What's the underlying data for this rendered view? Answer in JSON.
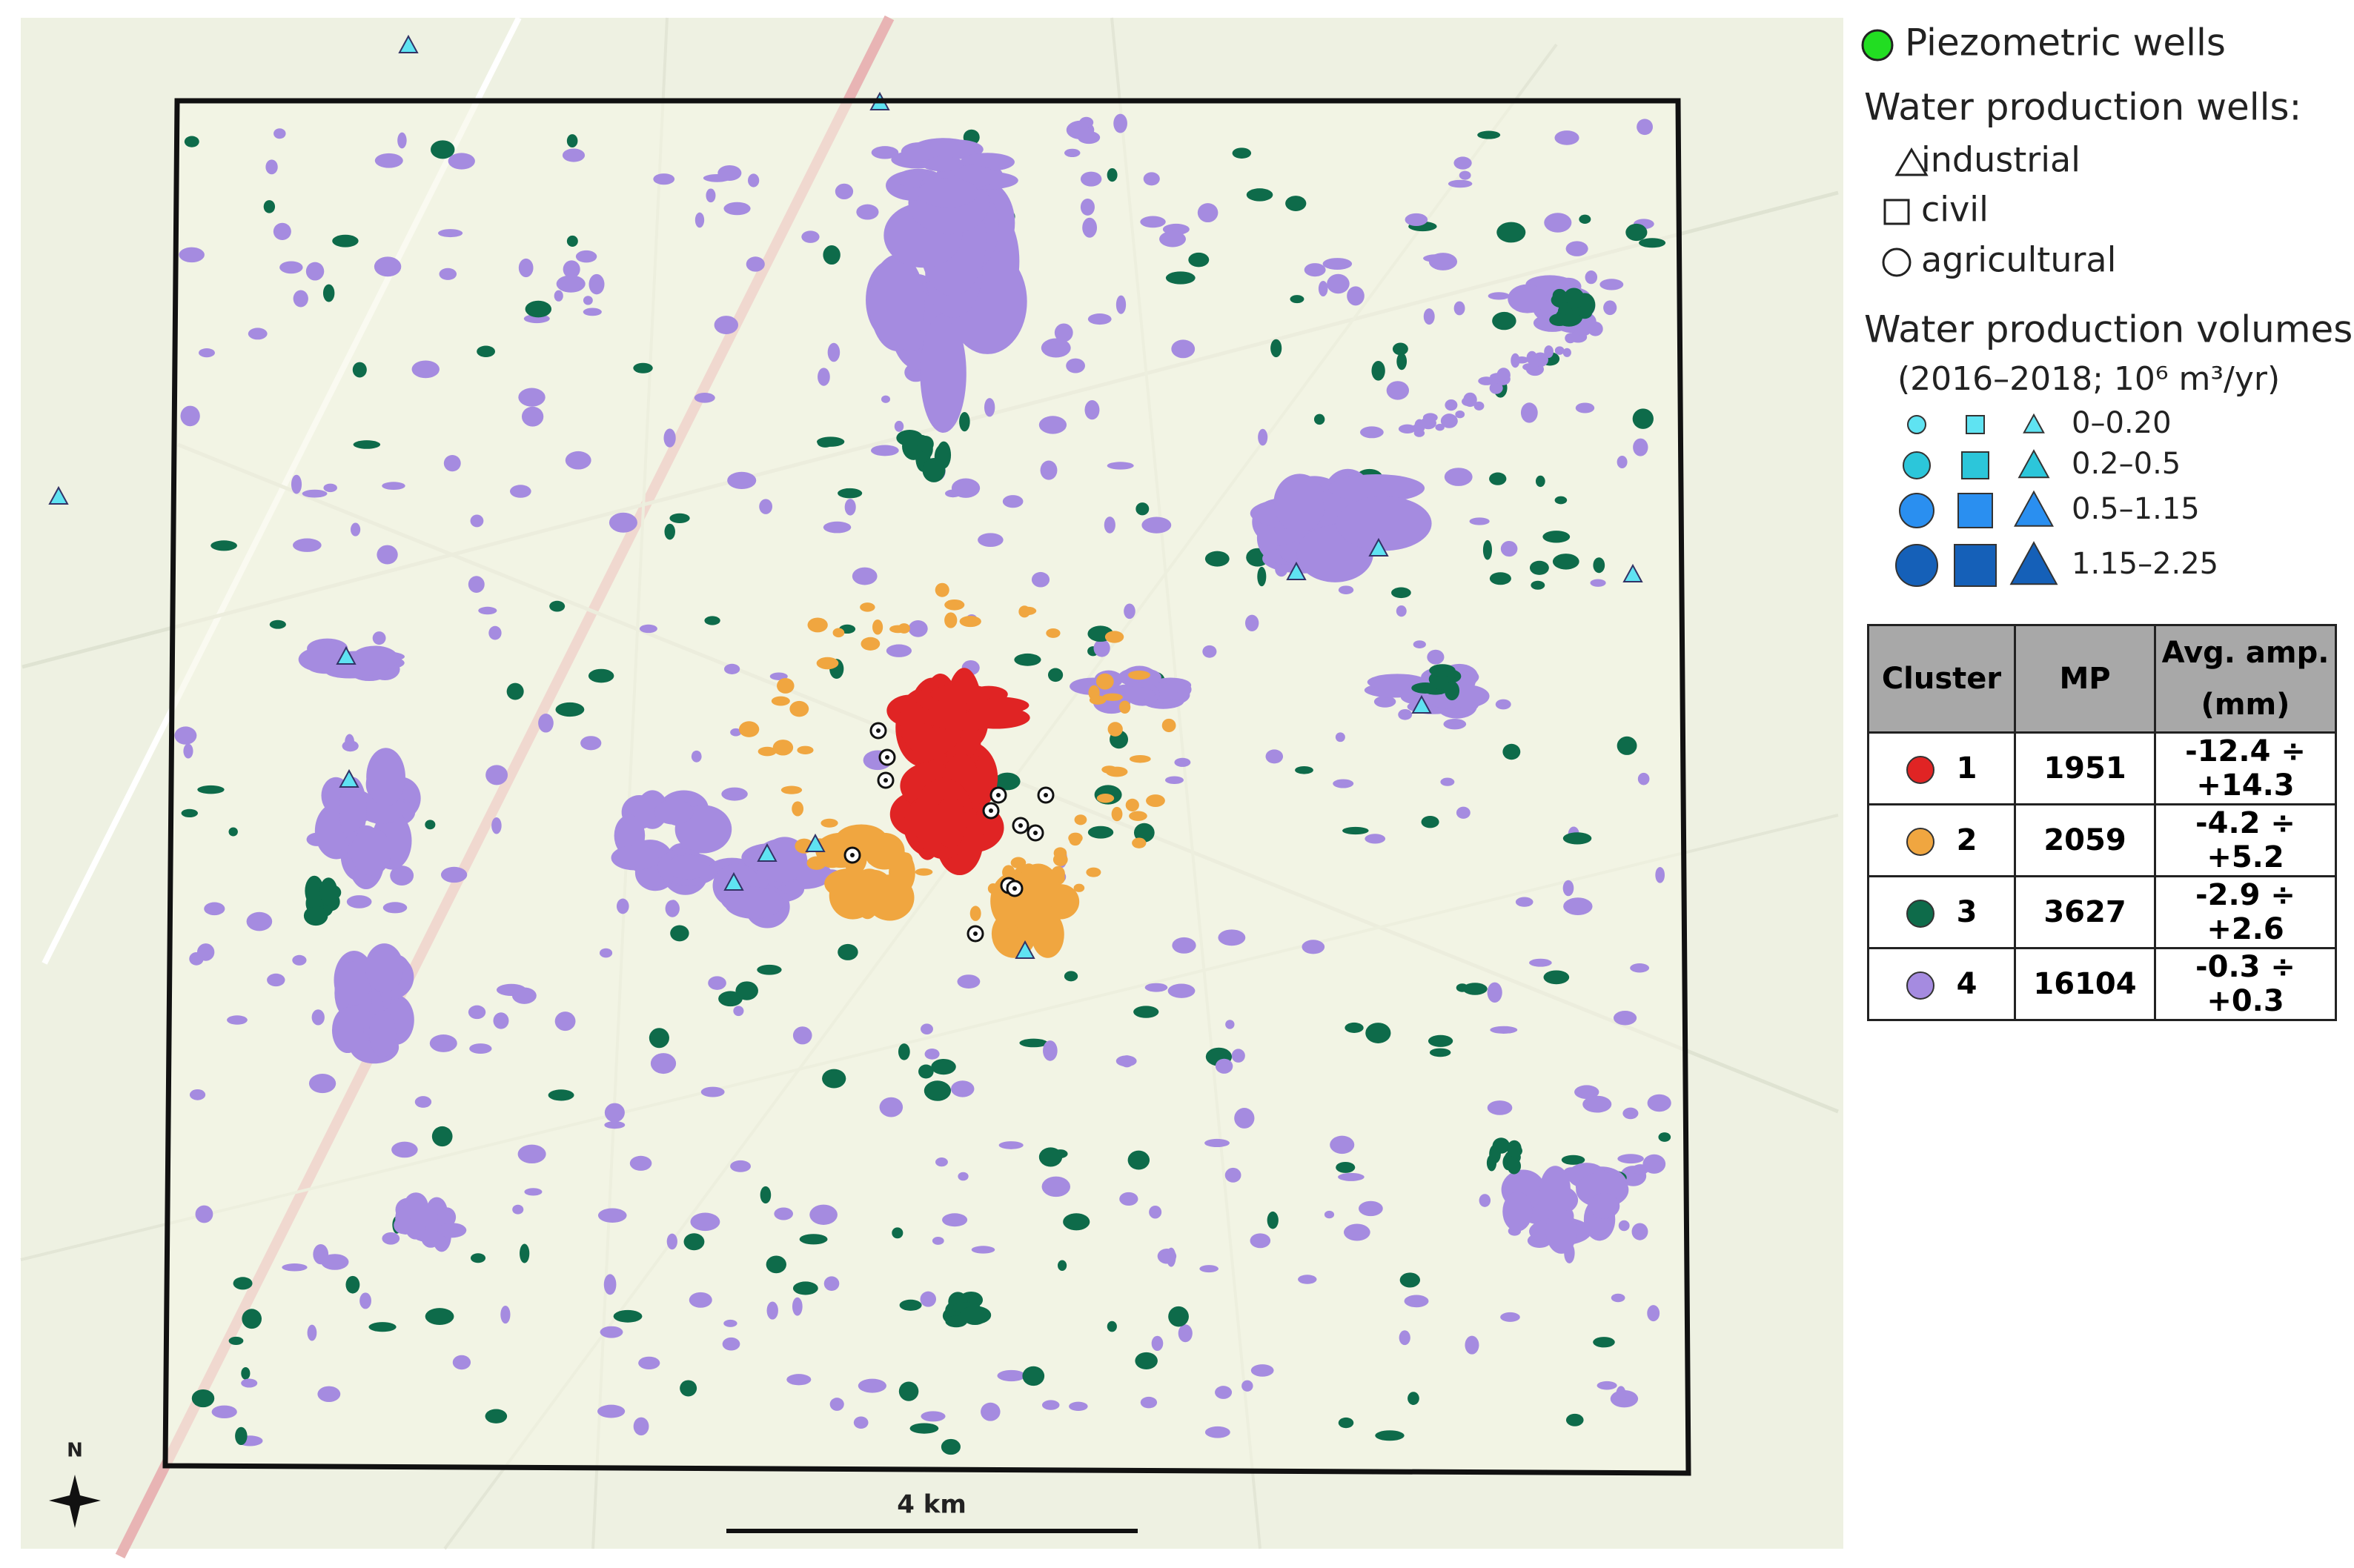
{
  "map": {
    "north_label": "N",
    "scale_bar": "4 km"
  },
  "legend": {
    "piezometric": "Piezometric wells",
    "production_title": "Water production wells:",
    "types": [
      "industrial",
      "civil",
      "agricultural"
    ],
    "volumes_title": "Water production volumes:",
    "volumes_subtitle": "(2016–2018; 10⁶ m³/yr)",
    "volume_classes": [
      "0–0.20",
      "0.2–0.5",
      "0.5–1.15",
      "1.15–2.25"
    ]
  },
  "table": {
    "headers": [
      "Cluster",
      "MP",
      "Avg. amp. (mm)"
    ],
    "rows": [
      [
        1,
        1951,
        "-12.4 ÷ +14.3"
      ],
      [
        2,
        2059,
        "-4.2 ÷ +5.2"
      ],
      [
        3,
        3627,
        "-2.9 ÷ +2.6"
      ],
      [
        4,
        16104,
        "-0.3 ÷ +0.3"
      ]
    ],
    "row_colors": [
      "#e02424",
      "#f0a640",
      "#0e6b4a",
      "#a58be0"
    ]
  }
}
